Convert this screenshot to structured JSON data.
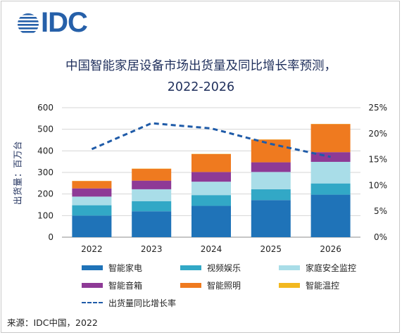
{
  "logo": {
    "text": "IDC"
  },
  "title": {
    "line1": "中国智能家居设备市场出货量及同比增长率预测，",
    "line2": "2022-2026"
  },
  "source": "来源：IDC中国，2022",
  "colors": {
    "smart_appliance": "#1f73b8",
    "video_entertainment": "#32a8c6",
    "home_security": "#a9dde8",
    "smart_speaker": "#8e3a96",
    "smart_lighting": "#ef7a1f",
    "smart_temperature": "#f2b820",
    "growth_line": "#1f5ba8",
    "grid": "#d6d6d6"
  },
  "chart_data": {
    "type": "bar",
    "stacked": true,
    "categories": [
      "2022",
      "2023",
      "2024",
      "2025",
      "2026"
    ],
    "ylabel": "出货量：百万台",
    "ylim": [
      0,
      600
    ],
    "yticks": [
      "0",
      "100",
      "200",
      "300",
      "400",
      "500",
      "600"
    ],
    "y2lim": [
      0,
      25
    ],
    "y2ticks": [
      "0%",
      "5%",
      "10%",
      "15%",
      "20%",
      "25%"
    ],
    "grid": true,
    "legend_position": "bottom",
    "series": [
      {
        "name": "智能家电",
        "color_key": "smart_appliance",
        "values": [
          100,
          120,
          145,
          172,
          197
        ]
      },
      {
        "name": "视频娱乐",
        "color_key": "video_entertainment",
        "values": [
          48,
          47,
          50,
          50,
          52
        ]
      },
      {
        "name": "家庭安全监控",
        "color_key": "home_security",
        "values": [
          40,
          55,
          62,
          80,
          100
        ]
      },
      {
        "name": "智能音箱",
        "color_key": "smart_speaker",
        "values": [
          38,
          40,
          45,
          45,
          45
        ]
      },
      {
        "name": "智能照明",
        "color_key": "smart_lighting",
        "values": [
          34,
          55,
          83,
          105,
          130
        ]
      },
      {
        "name": "智能温控",
        "color_key": "smart_temperature",
        "values": [
          1,
          1,
          1,
          1,
          1
        ]
      }
    ],
    "line": {
      "name": "出货量同比增长率",
      "color_key": "growth_line",
      "axis": "right",
      "values": [
        17,
        22,
        21,
        18,
        15.5
      ]
    }
  }
}
